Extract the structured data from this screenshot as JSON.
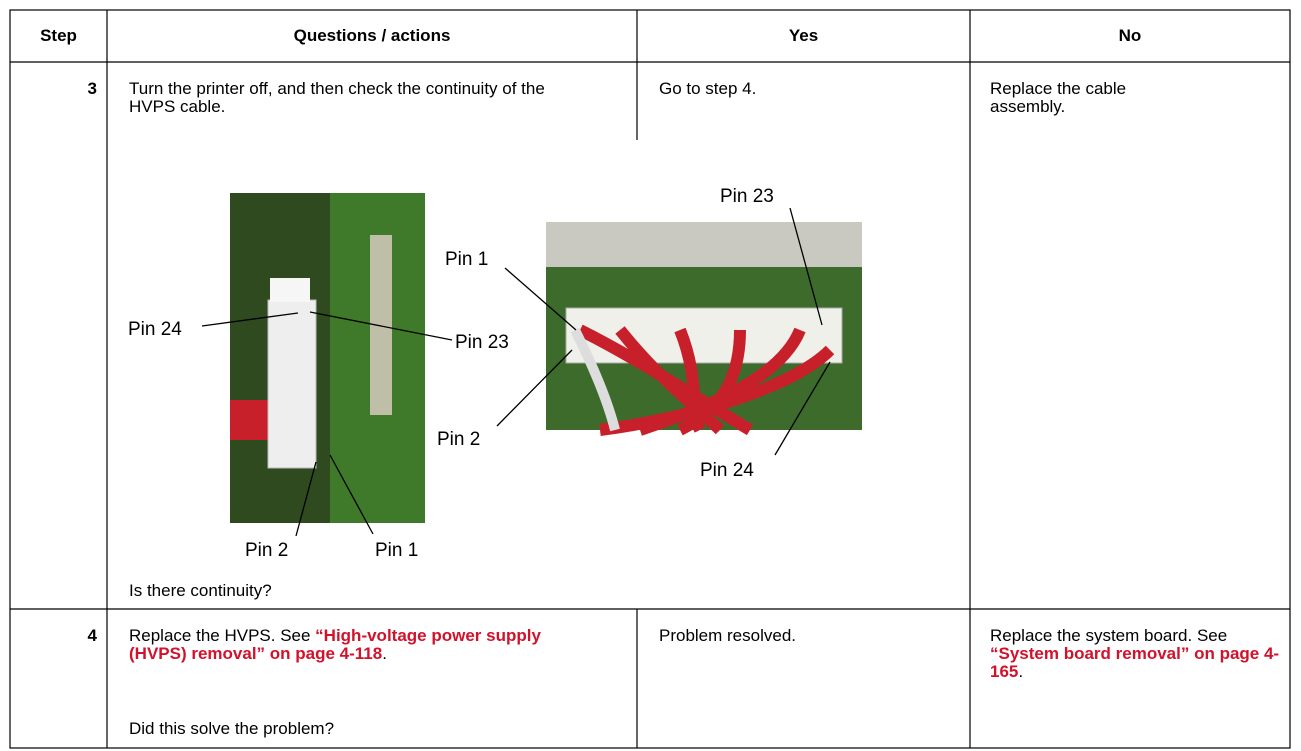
{
  "table": {
    "header": [
      "Step",
      "Questions / actions",
      "Yes",
      "No"
    ],
    "rows": [
      {
        "step": "3",
        "question": "Turn the printer off, and then check the continuity of the HVPS cable.",
        "yes": "Go to step 4.",
        "no": "Replace the cable assembly.",
        "figure": {
          "left_labels": [
            "Pin 24",
            "Pin 23",
            "Pin 2",
            "Pin 1"
          ],
          "right_labels": [
            "Pin 23",
            "Pin 1",
            "Pin 2",
            "Pin 24"
          ]
        },
        "follow_up": "Is there continuity?"
      },
      {
        "step": "4",
        "question": {
          "text": "Replace the HVPS. See ",
          "link": "“High-voltage power supply (HVPS) removal” on page 4-118",
          "end": "."
        },
        "follow_up": "Did this solve the problem?",
        "yes": "Problem resolved.",
        "no": {
          "text": "Replace the system board. See ",
          "link": "“System board removal” on page 4-165",
          "end": "."
        }
      }
    ]
  }
}
